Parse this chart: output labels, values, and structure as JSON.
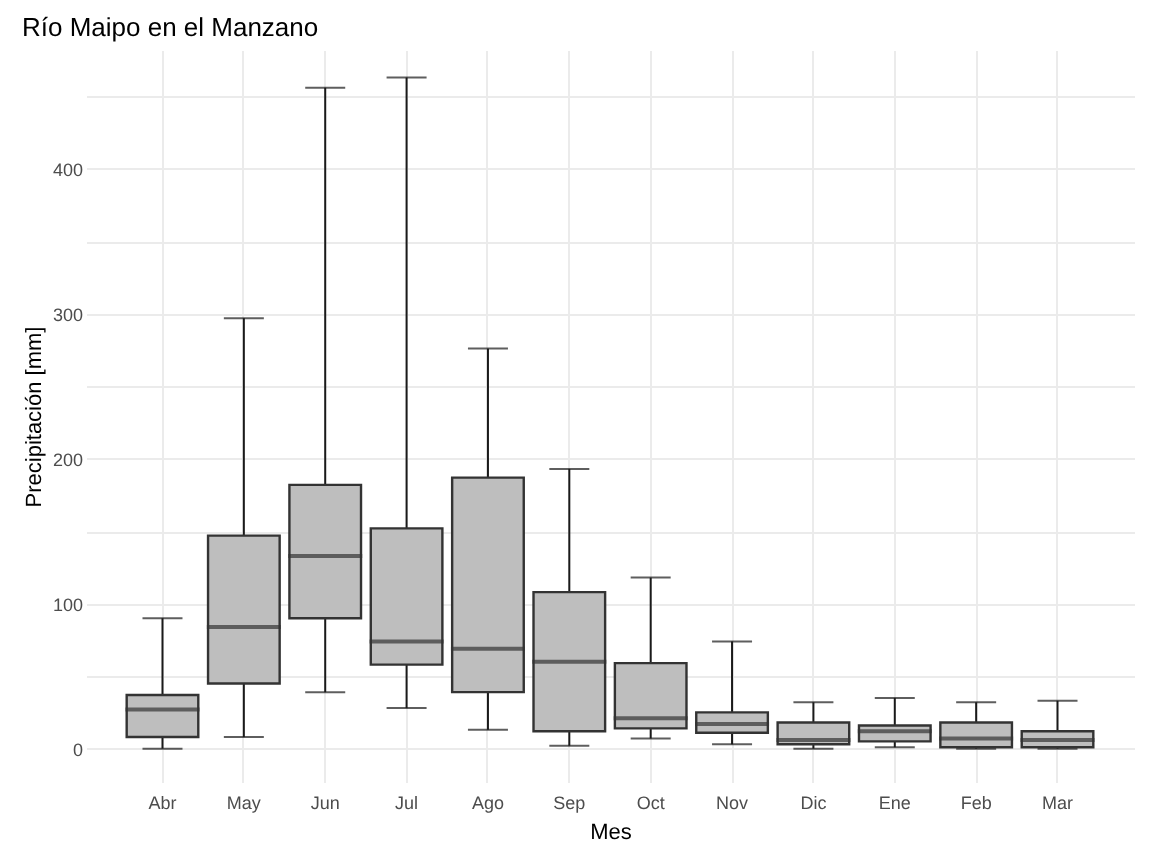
{
  "chart_data": {
    "type": "box",
    "title": "Río Maipo en el Manzano",
    "xlabel": "Mes",
    "ylabel": "Precipitación [mm]",
    "categories": [
      "Abr",
      "May",
      "Jun",
      "Jul",
      "Ago",
      "Sep",
      "Oct",
      "Nov",
      "Dic",
      "Ene",
      "Feb",
      "Mar"
    ],
    "color": "#bebebe",
    "boxes": [
      {
        "low": 0,
        "q1": 8,
        "median": 27,
        "q3": 37,
        "high": 90
      },
      {
        "low": 8,
        "q1": 45,
        "median": 84,
        "q3": 147,
        "high": 297
      },
      {
        "low": 39,
        "q1": 90,
        "median": 133,
        "q3": 182,
        "high": 456
      },
      {
        "low": 28,
        "q1": 58,
        "median": 74,
        "q3": 152,
        "high": 463
      },
      {
        "low": 13,
        "q1": 39,
        "median": 69,
        "q3": 187,
        "high": 276
      },
      {
        "low": 2,
        "q1": 12,
        "median": 60,
        "q3": 108,
        "high": 193
      },
      {
        "low": 7,
        "q1": 14,
        "median": 21,
        "q3": 59,
        "high": 118
      },
      {
        "low": 3,
        "q1": 11,
        "median": 17,
        "q3": 25,
        "high": 74
      },
      {
        "low": 0,
        "q1": 3,
        "median": 6,
        "q3": 18,
        "high": 32
      },
      {
        "low": 1,
        "q1": 5,
        "median": 12,
        "q3": 16,
        "high": 35
      },
      {
        "low": 0,
        "q1": 1,
        "median": 7,
        "q3": 18,
        "high": 32
      },
      {
        "low": 0,
        "q1": 1,
        "median": 6,
        "q3": 12,
        "high": 33
      }
    ],
    "ylim": [
      -23,
      482
    ],
    "yticks": [
      0,
      {
        "value": 50,
        "label": null
      },
      100,
      {
        "value": 150,
        "label": null
      },
      200,
      {
        "value": 250,
        "label": null
      },
      300,
      {
        "value": 350,
        "label": null
      },
      400,
      {
        "value": 450,
        "label": null
      }
    ],
    "grid": true
  }
}
